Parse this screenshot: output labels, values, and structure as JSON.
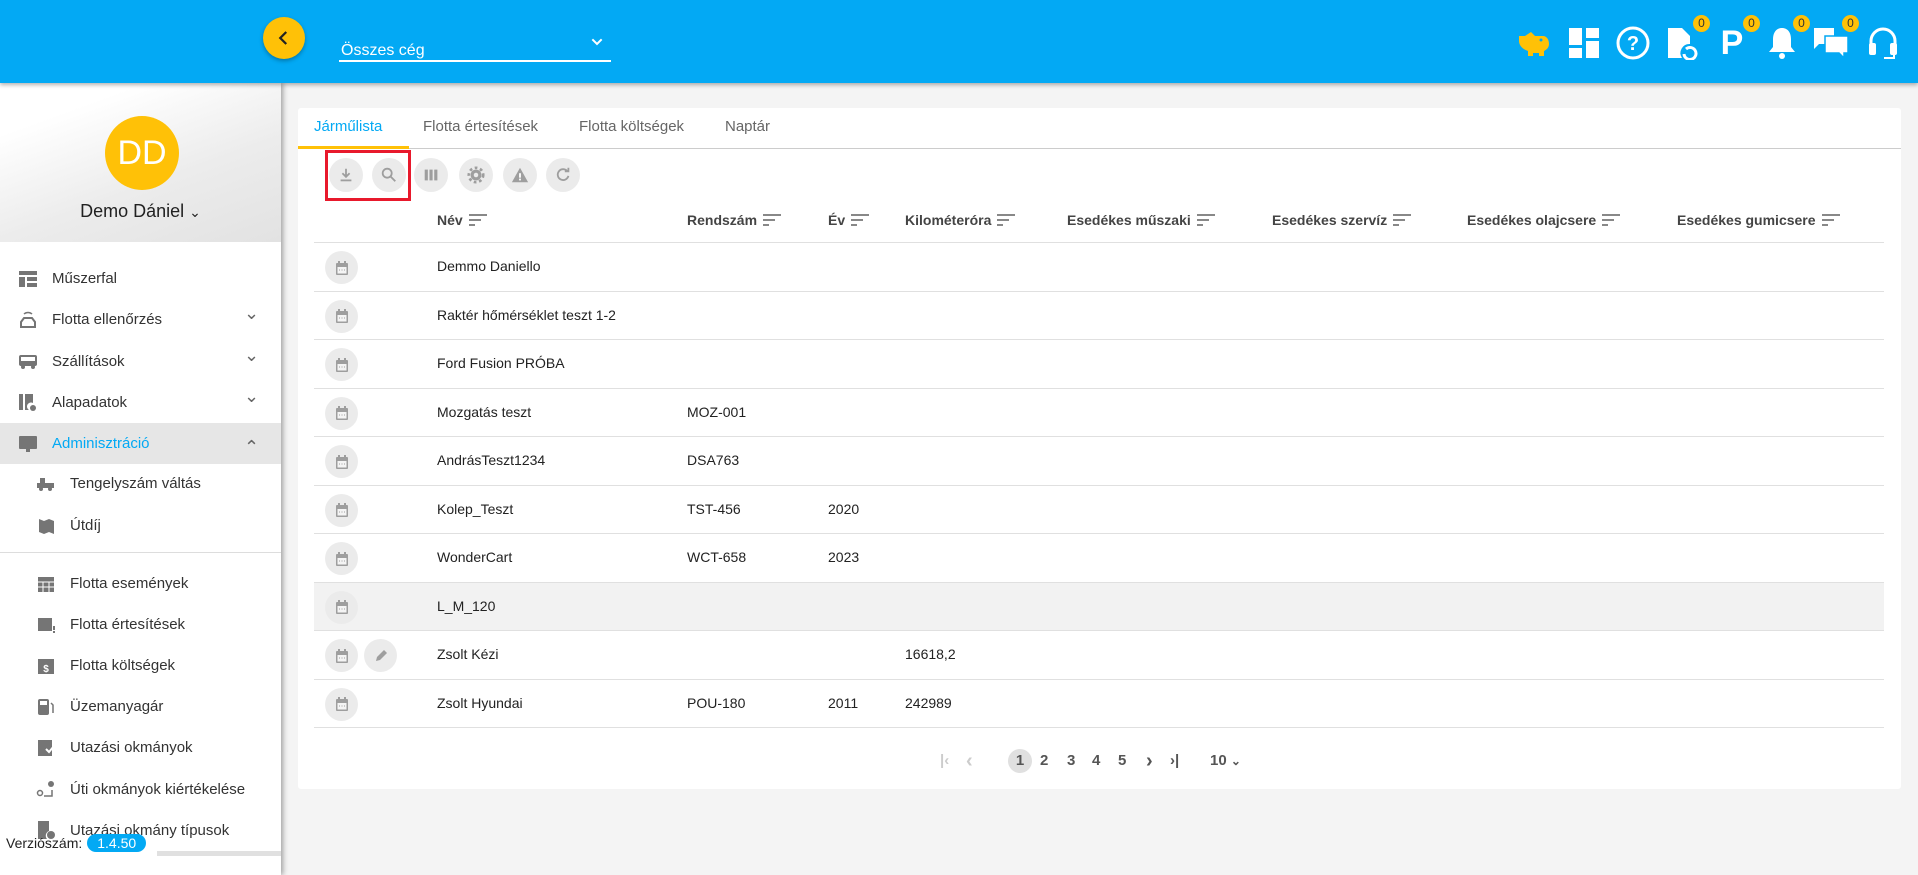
{
  "header": {
    "company_select": "Összes cég",
    "badges": {
      "documents": "0",
      "parking": "0",
      "notifications": "0",
      "messages": "0"
    },
    "accent": "#03a9f4",
    "yellow": "#ffc107"
  },
  "user": {
    "initials": "DD",
    "name": "Demo Dániel"
  },
  "sidebar": {
    "items": [
      {
        "label": "Műszerfal",
        "icon": "dashboard-icon"
      },
      {
        "label": "Flotta ellenőrzés",
        "icon": "car-signal-icon",
        "expandable": true
      },
      {
        "label": "Szállítások",
        "icon": "bus-icon",
        "expandable": true
      },
      {
        "label": "Alapadatok",
        "icon": "settings-doc-icon",
        "expandable": true
      },
      {
        "label": "Adminisztráció",
        "icon": "monitor-icon",
        "expanded": true,
        "active": true
      }
    ],
    "sub_items": [
      {
        "label": "Tengelyszám váltás",
        "icon": "truck-icon"
      },
      {
        "label": "Útdíj",
        "icon": "map-icon"
      }
    ],
    "bottom_items": [
      {
        "label": "Flotta események",
        "icon": "calendar-grid-icon"
      },
      {
        "label": "Flotta értesítések",
        "icon": "calendar-alert-icon"
      },
      {
        "label": "Flotta költségek",
        "icon": "calendar-dollar-icon"
      },
      {
        "label": "Üzemanyagár",
        "icon": "fuel-icon"
      },
      {
        "label": "Utazási okmányok",
        "icon": "ticket-check-icon"
      },
      {
        "label": "Úti okmányok kiértékelése",
        "icon": "route-icon"
      },
      {
        "label": "Utazási okmány típusok",
        "icon": "doc-type-icon"
      }
    ],
    "version_label": "Verziószám:",
    "version": "1.4.50"
  },
  "tabs": [
    {
      "label": "Járműlista",
      "active": true
    },
    {
      "label": "Flotta értesítések"
    },
    {
      "label": "Flotta költségek"
    },
    {
      "label": "Naptár"
    }
  ],
  "toolbar": [
    "download-icon",
    "search-icon",
    "columns-icon",
    "gear-icon",
    "warning-icon",
    "refresh-icon"
  ],
  "table": {
    "columns": [
      "Név",
      "Rendszám",
      "Év",
      "Kilométeróra",
      "Esedékes műszaki",
      "Esedékes szervíz",
      "Esedékes olajcsere",
      "Esedékes gumicsere"
    ],
    "rows": [
      {
        "name": "Demmo Daniello",
        "plate": "",
        "year": "",
        "km": ""
      },
      {
        "name": "Raktér hőmérséklet teszt 1-2",
        "plate": "",
        "year": "",
        "km": ""
      },
      {
        "name": "Ford Fusion PRÓBA",
        "plate": "",
        "year": "",
        "km": ""
      },
      {
        "name": "Mozgatás teszt",
        "plate": "MOZ-001",
        "year": "",
        "km": ""
      },
      {
        "name": "AndrásTeszt1234",
        "plate": "DSA763",
        "year": "",
        "km": ""
      },
      {
        "name": "Kolep_Teszt",
        "plate": "TST-456",
        "year": "2020",
        "km": ""
      },
      {
        "name": "WonderCart",
        "plate": "WCT-658",
        "year": "2023",
        "km": ""
      },
      {
        "name": "L_M_120",
        "plate": "",
        "year": "",
        "km": "",
        "highlighted": true
      },
      {
        "name": "Zsolt Kézi",
        "plate": "",
        "year": "",
        "km": "16618,2",
        "editable": true
      },
      {
        "name": "Zsolt Hyundai",
        "plate": "POU-180",
        "year": "2011",
        "km": "242989"
      }
    ]
  },
  "pagination": {
    "pages": [
      "1",
      "2",
      "3",
      "4",
      "5"
    ],
    "current": "1",
    "page_size": "10"
  }
}
